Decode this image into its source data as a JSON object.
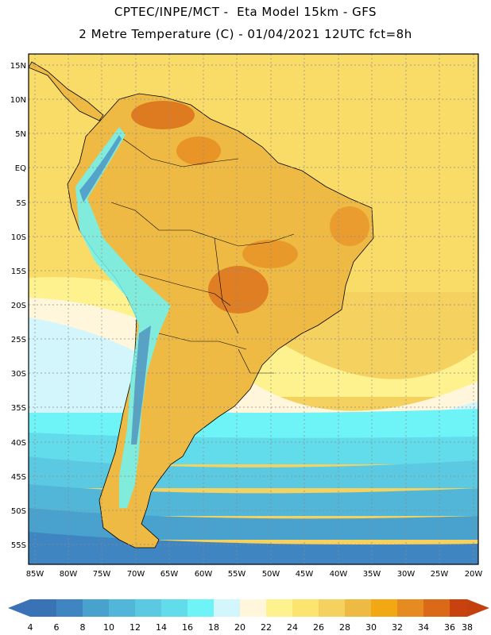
{
  "header": {
    "line1": "CPTEC/INPE/MCT -  Eta Model 15km - GFS",
    "line2": "2 Metre Temperature (C) - 01/04/2021 12UTC fct=8h"
  },
  "map": {
    "lat_labels": [
      "15N",
      "10N",
      "5N",
      "EQ",
      "5S",
      "10S",
      "15S",
      "20S",
      "25S",
      "30S",
      "35S",
      "40S",
      "45S",
      "50S",
      "55S"
    ],
    "lon_labels": [
      "85W",
      "80W",
      "75W",
      "70W",
      "65W",
      "60W",
      "55W",
      "50W",
      "45W",
      "40W",
      "35W",
      "30W",
      "25W",
      "20W"
    ]
  },
  "colorbar": {
    "labels": [
      "4",
      "6",
      "8",
      "10",
      "12",
      "14",
      "16",
      "18",
      "20",
      "22",
      "24",
      "26",
      "28",
      "30",
      "32",
      "34",
      "36",
      "38"
    ],
    "colors": [
      "#3a72b6",
      "#3f85c2",
      "#49a1cd",
      "#52b6d8",
      "#5cc9e3",
      "#62dbea",
      "#6ef4f7",
      "#d2f6fb",
      "#fff6dc",
      "#fdf28e",
      "#fbe46f",
      "#f5d160",
      "#efba44",
      "#f1a812",
      "#e68b1f",
      "#da6a18",
      "#c84210",
      "#c4400f"
    ],
    "low_arrow_color": "#3a72b6",
    "high_arrow_color": "#c4400f"
  }
}
